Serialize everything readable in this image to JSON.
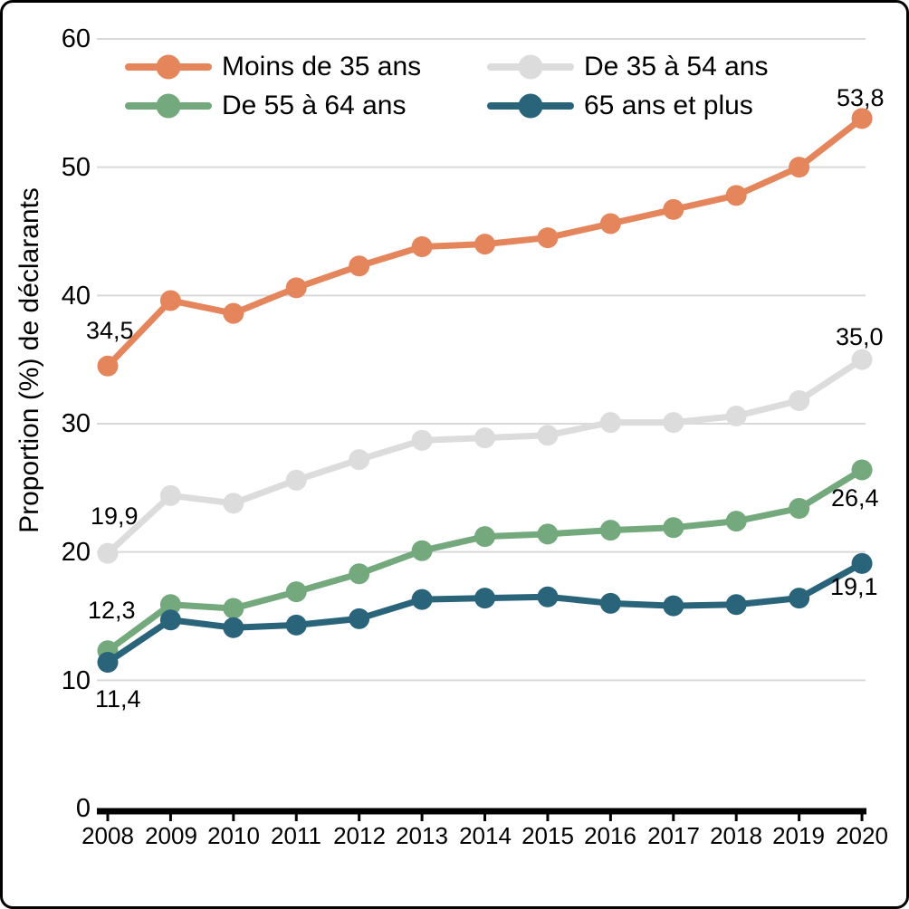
{
  "figure": {
    "y_axis_title": "Proportion (%) de déclarants"
  },
  "chart_data": {
    "type": "line",
    "title": "",
    "xlabel": "",
    "ylabel": "Proportion (%) de déclarants",
    "ylim": [
      0,
      60
    ],
    "grid": true,
    "gridline_color": "#D9D9D9",
    "axis_color": "#000000",
    "legend_position": "top-inside",
    "x": [
      "2008",
      "2009",
      "2010",
      "2011",
      "2012",
      "2013",
      "2014",
      "2015",
      "2016",
      "2017",
      "2018",
      "2019",
      "2020"
    ],
    "y_ticks": [
      "0",
      "10",
      "20",
      "30",
      "40",
      "50",
      "60"
    ],
    "series": [
      {
        "name": "Moins de 35 ans",
        "color": "#E5855C",
        "values": [
          34.5,
          39.6,
          38.6,
          40.6,
          42.3,
          43.8,
          44.0,
          44.5,
          45.6,
          46.7,
          47.8,
          50.0,
          53.8
        ],
        "first_label": "34,5",
        "last_label": "53,8"
      },
      {
        "name": "De 35 à 54 ans",
        "color": "#DCDCDC",
        "values": [
          19.9,
          24.4,
          23.8,
          25.6,
          27.2,
          28.7,
          28.9,
          29.1,
          30.1,
          30.1,
          30.6,
          31.8,
          35.0
        ],
        "first_label": "19,9",
        "last_label": "35,0"
      },
      {
        "name": "De 55 à 64 ans",
        "color": "#74A87D",
        "values": [
          12.3,
          15.9,
          15.6,
          16.9,
          18.3,
          20.1,
          21.2,
          21.4,
          21.7,
          21.9,
          22.4,
          23.4,
          26.4
        ],
        "first_label": "12,3",
        "last_label": "26,4"
      },
      {
        "name": "65 ans et plus",
        "color": "#29647B",
        "values": [
          11.4,
          14.7,
          14.1,
          14.3,
          14.8,
          16.3,
          16.4,
          16.5,
          16.0,
          15.8,
          15.9,
          16.4,
          19.1
        ],
        "first_label": "11,4",
        "last_label": "19,1"
      }
    ]
  }
}
